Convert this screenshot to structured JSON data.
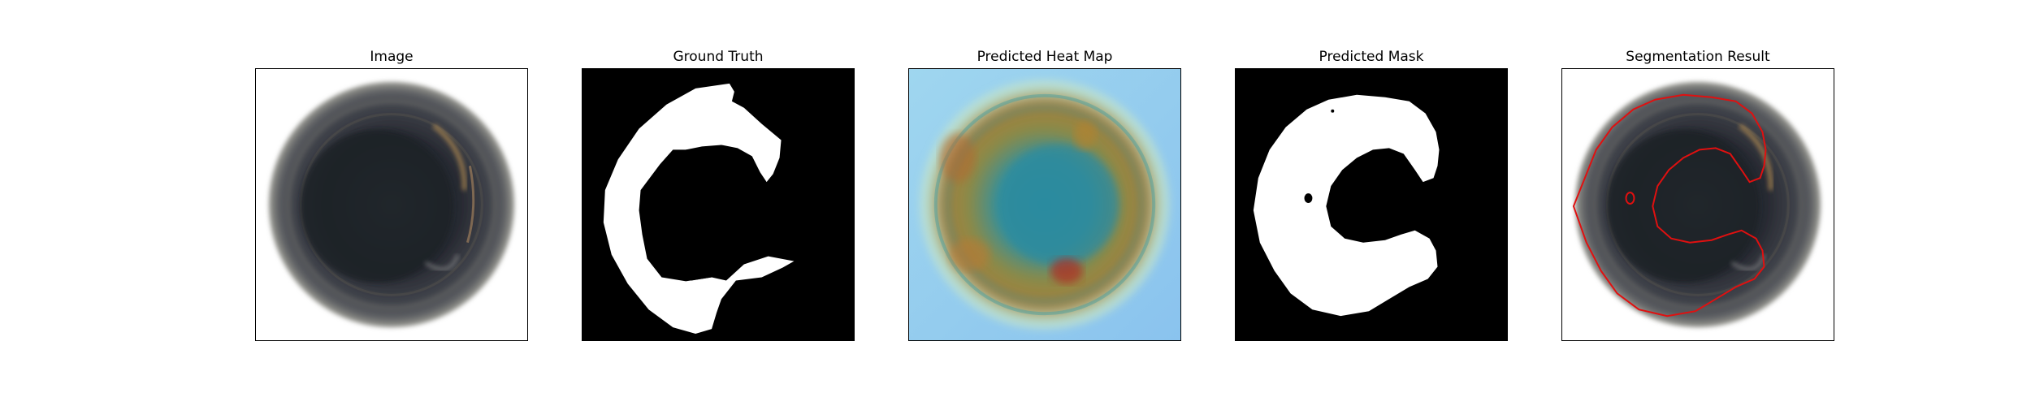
{
  "panels": [
    {
      "title": "Image"
    },
    {
      "title": "Ground Truth"
    },
    {
      "title": "Predicted Heat Map"
    },
    {
      "title": "Predicted Mask"
    },
    {
      "title": "Segmentation Result"
    }
  ],
  "colors": {
    "background": "#ffffff",
    "mask_foreground": "#ffffff",
    "mask_background": "#000000",
    "contour": "#e01010"
  }
}
